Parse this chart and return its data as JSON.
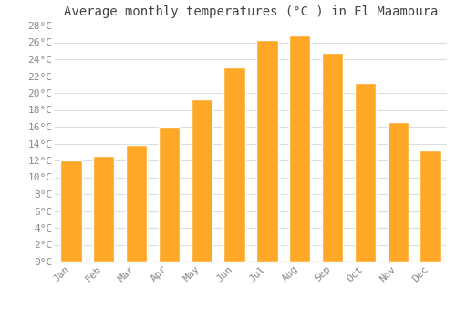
{
  "title": "Average monthly temperatures (°C ) in El Maamoura",
  "months": [
    "Jan",
    "Feb",
    "Mar",
    "Apr",
    "May",
    "Jun",
    "Jul",
    "Aug",
    "Sep",
    "Oct",
    "Nov",
    "Dec"
  ],
  "values": [
    12.0,
    12.5,
    13.8,
    16.0,
    19.2,
    23.0,
    26.3,
    26.8,
    24.8,
    21.2,
    16.5,
    13.2
  ],
  "bar_color_top": "#FFA726",
  "bar_color_bottom": "#FFD580",
  "ylim": [
    0,
    28
  ],
  "ytick_step": 2,
  "background_color": "#ffffff",
  "plot_bg_color": "#ffffff",
  "grid_color": "#dddddd",
  "title_fontsize": 10,
  "tick_fontsize": 8,
  "font_family": "monospace",
  "title_color": "#444444",
  "tick_color": "#888888",
  "bar_width": 0.65
}
